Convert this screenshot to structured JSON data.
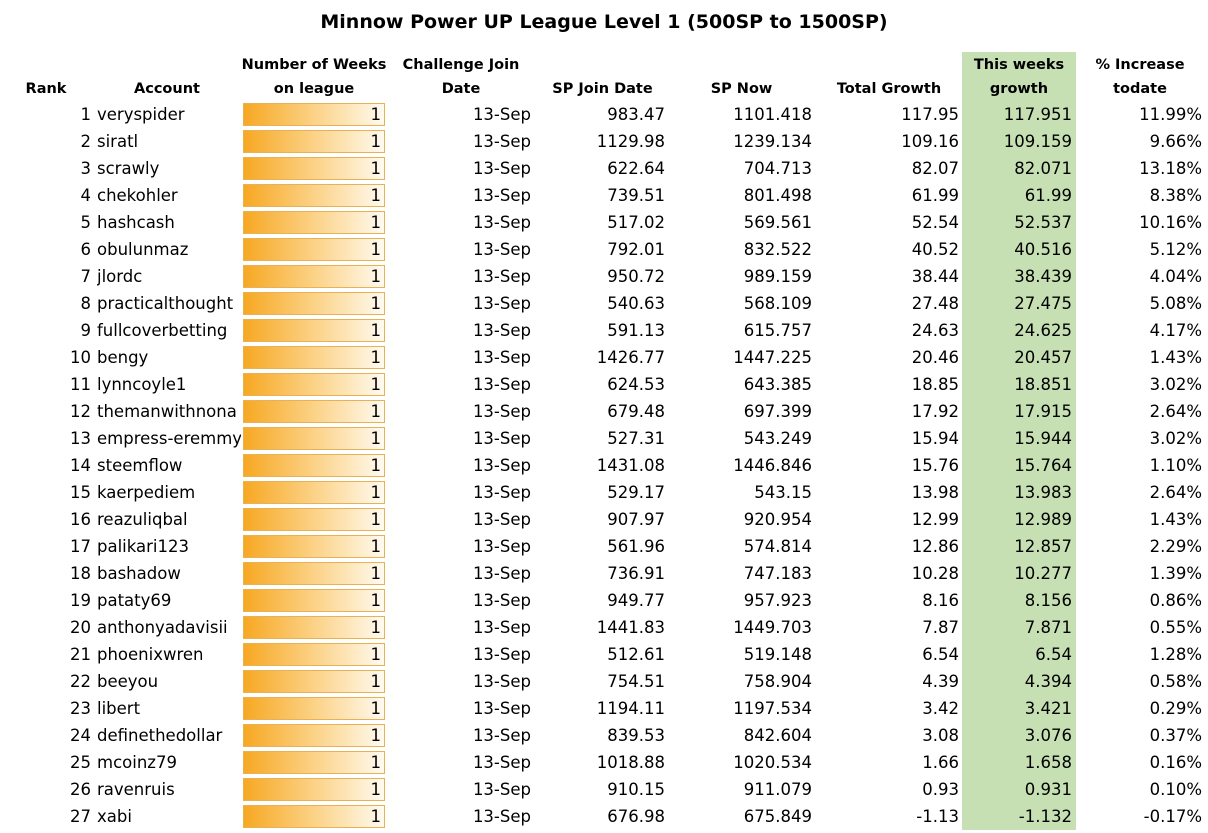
{
  "title": "Minnow Power UP League Level 1 (500SP to 1500SP)",
  "headers": {
    "rank": "Rank",
    "account": "Account",
    "weeks_line1": "Number of Weeks",
    "weeks_line2": "on league",
    "join_line1": "Challenge Join",
    "join_line2": "Date",
    "sp_join": "SP Join Date",
    "sp_now": "SP Now",
    "total_growth": "Total Growth",
    "this_week_line1": "This weeks",
    "this_week_line2": "growth",
    "pct_line1": "% Increase",
    "pct_line2": "todate"
  },
  "colors": {
    "highlight": "#c6e0b4",
    "bar_start": "#f7a823",
    "bar_end": "#fffaf0"
  },
  "rows": [
    {
      "rank": "1",
      "account": "veryspider",
      "weeks": "1",
      "join_date": "13-Sep",
      "sp_join": "983.47",
      "sp_now": "1101.418",
      "total_growth": "117.95",
      "this_week": "117.951",
      "pct": "11.99%"
    },
    {
      "rank": "2",
      "account": "siratl",
      "weeks": "1",
      "join_date": "13-Sep",
      "sp_join": "1129.98",
      "sp_now": "1239.134",
      "total_growth": "109.16",
      "this_week": "109.159",
      "pct": "9.66%"
    },
    {
      "rank": "3",
      "account": "scrawly",
      "weeks": "1",
      "join_date": "13-Sep",
      "sp_join": "622.64",
      "sp_now": "704.713",
      "total_growth": "82.07",
      "this_week": "82.071",
      "pct": "13.18%"
    },
    {
      "rank": "4",
      "account": "chekohler",
      "weeks": "1",
      "join_date": "13-Sep",
      "sp_join": "739.51",
      "sp_now": "801.498",
      "total_growth": "61.99",
      "this_week": "61.99",
      "pct": "8.38%"
    },
    {
      "rank": "5",
      "account": "hashcash",
      "weeks": "1",
      "join_date": "13-Sep",
      "sp_join": "517.02",
      "sp_now": "569.561",
      "total_growth": "52.54",
      "this_week": "52.537",
      "pct": "10.16%"
    },
    {
      "rank": "6",
      "account": "obulunmaz",
      "weeks": "1",
      "join_date": "13-Sep",
      "sp_join": "792.01",
      "sp_now": "832.522",
      "total_growth": "40.52",
      "this_week": "40.516",
      "pct": "5.12%"
    },
    {
      "rank": "7",
      "account": "jlordc",
      "weeks": "1",
      "join_date": "13-Sep",
      "sp_join": "950.72",
      "sp_now": "989.159",
      "total_growth": "38.44",
      "this_week": "38.439",
      "pct": "4.04%"
    },
    {
      "rank": "8",
      "account": "practicalthought",
      "weeks": "1",
      "join_date": "13-Sep",
      "sp_join": "540.63",
      "sp_now": "568.109",
      "total_growth": "27.48",
      "this_week": "27.475",
      "pct": "5.08%"
    },
    {
      "rank": "9",
      "account": "fullcoverbetting",
      "weeks": "1",
      "join_date": "13-Sep",
      "sp_join": "591.13",
      "sp_now": "615.757",
      "total_growth": "24.63",
      "this_week": "24.625",
      "pct": "4.17%"
    },
    {
      "rank": "10",
      "account": "bengy",
      "weeks": "1",
      "join_date": "13-Sep",
      "sp_join": "1426.77",
      "sp_now": "1447.225",
      "total_growth": "20.46",
      "this_week": "20.457",
      "pct": "1.43%"
    },
    {
      "rank": "11",
      "account": "lynncoyle1",
      "weeks": "1",
      "join_date": "13-Sep",
      "sp_join": "624.53",
      "sp_now": "643.385",
      "total_growth": "18.85",
      "this_week": "18.851",
      "pct": "3.02%"
    },
    {
      "rank": "12",
      "account": "themanwithnona",
      "weeks": "1",
      "join_date": "13-Sep",
      "sp_join": "679.48",
      "sp_now": "697.399",
      "total_growth": "17.92",
      "this_week": "17.915",
      "pct": "2.64%"
    },
    {
      "rank": "13",
      "account": "empress-eremmy",
      "weeks": "1",
      "join_date": "13-Sep",
      "sp_join": "527.31",
      "sp_now": "543.249",
      "total_growth": "15.94",
      "this_week": "15.944",
      "pct": "3.02%"
    },
    {
      "rank": "14",
      "account": "steemflow",
      "weeks": "1",
      "join_date": "13-Sep",
      "sp_join": "1431.08",
      "sp_now": "1446.846",
      "total_growth": "15.76",
      "this_week": "15.764",
      "pct": "1.10%"
    },
    {
      "rank": "15",
      "account": "kaerpediem",
      "weeks": "1",
      "join_date": "13-Sep",
      "sp_join": "529.17",
      "sp_now": "543.15",
      "total_growth": "13.98",
      "this_week": "13.983",
      "pct": "2.64%"
    },
    {
      "rank": "16",
      "account": "reazuliqbal",
      "weeks": "1",
      "join_date": "13-Sep",
      "sp_join": "907.97",
      "sp_now": "920.954",
      "total_growth": "12.99",
      "this_week": "12.989",
      "pct": "1.43%"
    },
    {
      "rank": "17",
      "account": "palikari123",
      "weeks": "1",
      "join_date": "13-Sep",
      "sp_join": "561.96",
      "sp_now": "574.814",
      "total_growth": "12.86",
      "this_week": "12.857",
      "pct": "2.29%"
    },
    {
      "rank": "18",
      "account": "bashadow",
      "weeks": "1",
      "join_date": "13-Sep",
      "sp_join": "736.91",
      "sp_now": "747.183",
      "total_growth": "10.28",
      "this_week": "10.277",
      "pct": "1.39%"
    },
    {
      "rank": "19",
      "account": "pataty69",
      "weeks": "1",
      "join_date": "13-Sep",
      "sp_join": "949.77",
      "sp_now": "957.923",
      "total_growth": "8.16",
      "this_week": "8.156",
      "pct": "0.86%"
    },
    {
      "rank": "20",
      "account": "anthonyadavisii",
      "weeks": "1",
      "join_date": "13-Sep",
      "sp_join": "1441.83",
      "sp_now": "1449.703",
      "total_growth": "7.87",
      "this_week": "7.871",
      "pct": "0.55%"
    },
    {
      "rank": "21",
      "account": "phoenixwren",
      "weeks": "1",
      "join_date": "13-Sep",
      "sp_join": "512.61",
      "sp_now": "519.148",
      "total_growth": "6.54",
      "this_week": "6.54",
      "pct": "1.28%"
    },
    {
      "rank": "22",
      "account": "beeyou",
      "weeks": "1",
      "join_date": "13-Sep",
      "sp_join": "754.51",
      "sp_now": "758.904",
      "total_growth": "4.39",
      "this_week": "4.394",
      "pct": "0.58%"
    },
    {
      "rank": "23",
      "account": "libert",
      "weeks": "1",
      "join_date": "13-Sep",
      "sp_join": "1194.11",
      "sp_now": "1197.534",
      "total_growth": "3.42",
      "this_week": "3.421",
      "pct": "0.29%"
    },
    {
      "rank": "24",
      "account": "definethedollar",
      "weeks": "1",
      "join_date": "13-Sep",
      "sp_join": "839.53",
      "sp_now": "842.604",
      "total_growth": "3.08",
      "this_week": "3.076",
      "pct": "0.37%"
    },
    {
      "rank": "25",
      "account": "mcoinz79",
      "weeks": "1",
      "join_date": "13-Sep",
      "sp_join": "1018.88",
      "sp_now": "1020.534",
      "total_growth": "1.66",
      "this_week": "1.658",
      "pct": "0.16%"
    },
    {
      "rank": "26",
      "account": "ravenruis",
      "weeks": "1",
      "join_date": "13-Sep",
      "sp_join": "910.15",
      "sp_now": "911.079",
      "total_growth": "0.93",
      "this_week": "0.931",
      "pct": "0.10%"
    },
    {
      "rank": "27",
      "account": "xabi",
      "weeks": "1",
      "join_date": "13-Sep",
      "sp_join": "676.98",
      "sp_now": "675.849",
      "total_growth": "-1.13",
      "this_week": "-1.132",
      "pct": "-0.17%"
    }
  ]
}
